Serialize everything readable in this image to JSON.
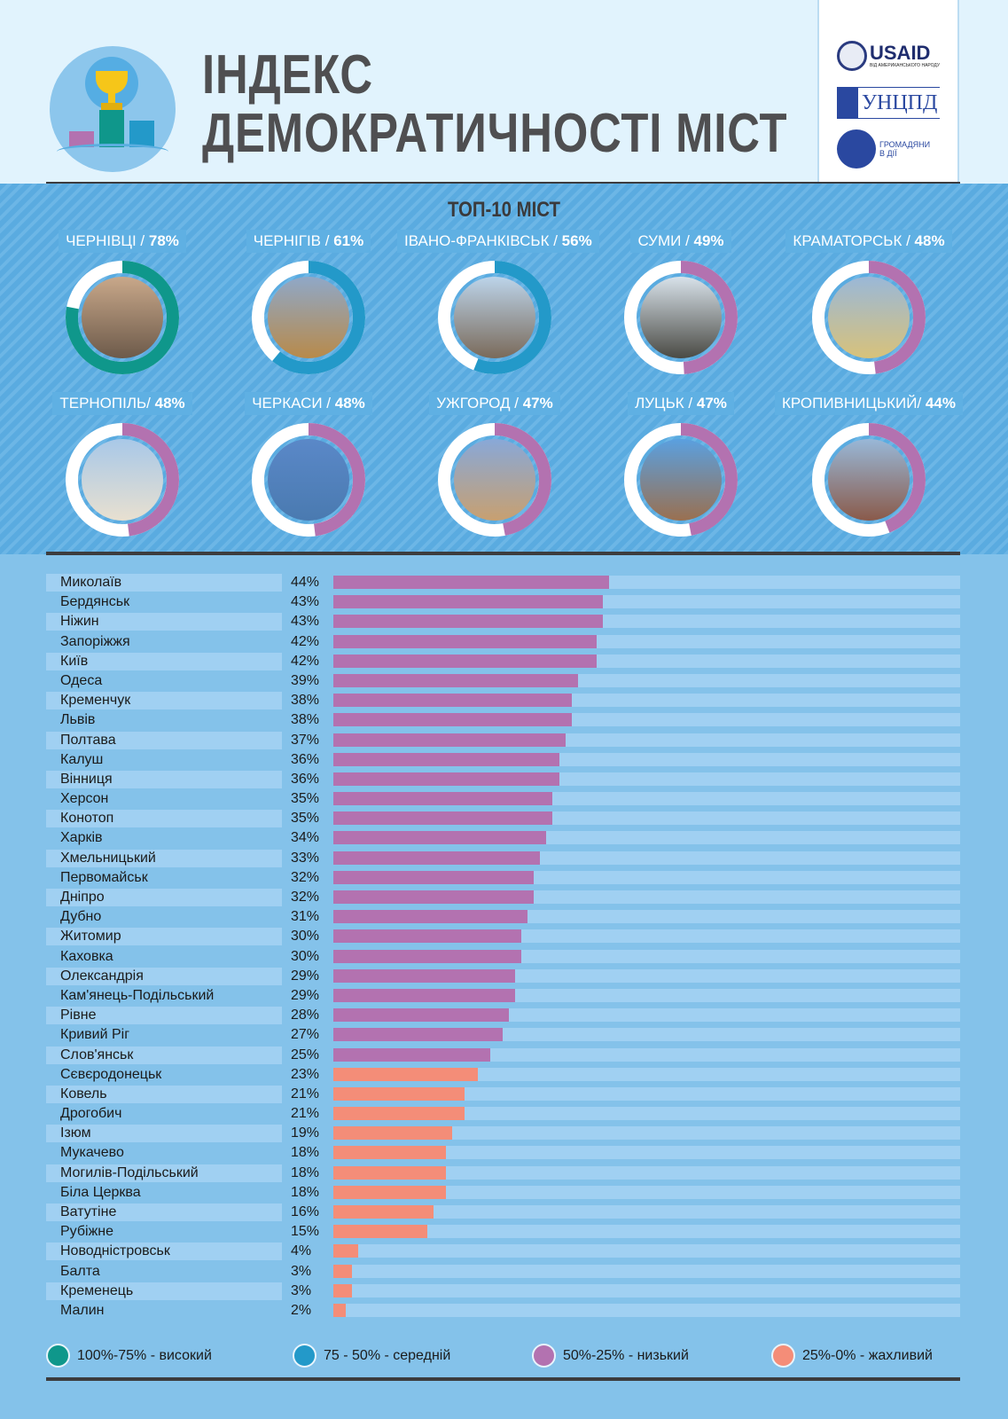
{
  "header": {
    "title_line1": "ІНДЕКС",
    "title_line2": "ДЕМОКРАТИЧНОСТІ МІСТ",
    "partners": [
      {
        "name": "USAID",
        "sub": "ВІД АМЕРИКАНСЬКОГО НАРОДУ"
      },
      {
        "name": "УНЦПД"
      },
      {
        "name": "ГРОМАДЯНИ В ДІЇ"
      }
    ]
  },
  "colors": {
    "high": "#0f978b",
    "medium": "#2399c9",
    "low": "#b372b0",
    "poor": "#f48d78"
  },
  "top10": {
    "title": "ТОП-10 МІСТ",
    "cities": [
      {
        "name": "ЧЕРНІВЦІ / ",
        "pct": "78%",
        "value": 78,
        "level": "high"
      },
      {
        "name": "ЧЕРНІГІВ / ",
        "pct": "61%",
        "value": 61,
        "level": "medium"
      },
      {
        "name": "ІВАНО-ФРАНКІВСЬК / ",
        "pct": "56%",
        "value": 56,
        "level": "medium"
      },
      {
        "name": "СУМИ / ",
        "pct": "49%",
        "value": 49,
        "level": "low"
      },
      {
        "name": "КРАМАТОРСЬК / ",
        "pct": "48%",
        "value": 48,
        "level": "low"
      },
      {
        "name": "ТЕРНОПІЛЬ/ ",
        "pct": "48%",
        "value": 48,
        "level": "low"
      },
      {
        "name": "ЧЕРКАСИ / ",
        "pct": "48%",
        "value": 48,
        "level": "low"
      },
      {
        "name": "УЖГОРОД / ",
        "pct": "47%",
        "value": 47,
        "level": "low"
      },
      {
        "name": "ЛУЦЬК / ",
        "pct": "47%",
        "value": 47,
        "level": "low"
      },
      {
        "name": "КРОПИВНИЦЬКИЙ/ ",
        "pct": "44%",
        "value": 44,
        "level": "low"
      }
    ]
  },
  "chart_data": {
    "type": "bar",
    "orientation": "horizontal",
    "xlim": [
      0,
      100
    ],
    "categories": [
      "Миколаїв",
      "Бердянськ",
      "Ніжин",
      "Запоріжжя",
      "Київ",
      "Одеса",
      "Кременчук",
      "Львів",
      "Полтава",
      "Калуш",
      "Вінниця",
      "Херсон",
      "Конотоп",
      "Харків",
      "Хмельницький",
      "Первомайськ",
      "Дніпро",
      "Дубно",
      "Житомир",
      "Каховка",
      "Олександрія",
      "Кам'янець-Подільський",
      "Рівне",
      "Кривий Ріг",
      "Слов'янськ",
      "Сєвєродонецьк",
      "Ковель",
      "Дрогобич",
      "Ізюм",
      "Мукачево",
      "Могилів-Подільський",
      "Біла Церква",
      "Ватутіне",
      "Рубіжне",
      "Новодністровськ",
      "Балта",
      "Кременець",
      "Малин"
    ],
    "values": [
      44,
      43,
      43,
      42,
      42,
      39,
      38,
      38,
      37,
      36,
      36,
      35,
      35,
      34,
      33,
      32,
      32,
      31,
      30,
      30,
      29,
      29,
      28,
      27,
      25,
      23,
      21,
      21,
      19,
      18,
      18,
      18,
      16,
      15,
      4,
      3,
      3,
      2
    ],
    "labels": [
      "44%",
      "43%",
      "43%",
      "42%",
      "42%",
      "39%",
      "38%",
      "38%",
      "37%",
      "36%",
      "36%",
      "35%",
      "35%",
      "34%",
      "33%",
      "32%",
      "32%",
      "31%",
      "30%",
      "30%",
      "29%",
      "29%",
      "28%",
      "27%",
      "25%",
      "23%",
      "21%",
      "21%",
      "19%",
      "18%",
      "18%",
      "18%",
      "16%",
      "15%",
      "4%",
      "3%",
      "3%",
      "2%"
    ],
    "legend": [
      {
        "label": "100%-75% - високий",
        "level": "high"
      },
      {
        "label": "75 - 50% - середній",
        "level": "medium"
      },
      {
        "label": "50%-25% - низький",
        "level": "low"
      },
      {
        "label": "25%-0% - жахливий",
        "level": "poor"
      }
    ]
  }
}
